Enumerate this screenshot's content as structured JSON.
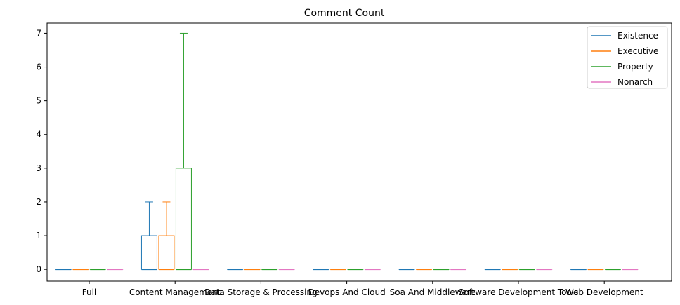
{
  "chart_data": {
    "type": "box",
    "title": "Comment Count",
    "xlabel": "",
    "ylabel": "",
    "ylim": [
      -0.35,
      7.3
    ],
    "yticks": [
      0,
      1,
      2,
      3,
      4,
      5,
      6,
      7
    ],
    "grid": false,
    "legend": "top-right",
    "categories": [
      "Full",
      "Content Management",
      "Data Storage & Processing",
      "Devops And Cloud",
      "Soa And Middleware",
      "Software Development Tools",
      "Web Development"
    ],
    "series": [
      {
        "name": "Existence",
        "color": "#1f77b4",
        "boxes": [
          {
            "whislo": 0,
            "q1": 0,
            "med": 0,
            "q3": 0,
            "whishi": 0
          },
          {
            "whislo": 0,
            "q1": 0,
            "med": 0,
            "q3": 1,
            "whishi": 2
          },
          {
            "whislo": 0,
            "q1": 0,
            "med": 0,
            "q3": 0,
            "whishi": 0
          },
          {
            "whislo": 0,
            "q1": 0,
            "med": 0,
            "q3": 0,
            "whishi": 0
          },
          {
            "whislo": 0,
            "q1": 0,
            "med": 0,
            "q3": 0,
            "whishi": 0
          },
          {
            "whislo": 0,
            "q1": 0,
            "med": 0,
            "q3": 0,
            "whishi": 0
          },
          {
            "whislo": 0,
            "q1": 0,
            "med": 0,
            "q3": 0,
            "whishi": 0
          }
        ]
      },
      {
        "name": "Executive",
        "color": "#ff7f0e",
        "boxes": [
          {
            "whislo": 0,
            "q1": 0,
            "med": 0,
            "q3": 0,
            "whishi": 0
          },
          {
            "whislo": 0,
            "q1": 0,
            "med": 0,
            "q3": 1,
            "whishi": 2
          },
          {
            "whislo": 0,
            "q1": 0,
            "med": 0,
            "q3": 0,
            "whishi": 0
          },
          {
            "whislo": 0,
            "q1": 0,
            "med": 0,
            "q3": 0,
            "whishi": 0
          },
          {
            "whislo": 0,
            "q1": 0,
            "med": 0,
            "q3": 0,
            "whishi": 0
          },
          {
            "whislo": 0,
            "q1": 0,
            "med": 0,
            "q3": 0,
            "whishi": 0
          },
          {
            "whislo": 0,
            "q1": 0,
            "med": 0,
            "q3": 0,
            "whishi": 0
          }
        ]
      },
      {
        "name": "Property",
        "color": "#2ca02c",
        "boxes": [
          {
            "whislo": 0,
            "q1": 0,
            "med": 0,
            "q3": 0,
            "whishi": 0
          },
          {
            "whislo": 0,
            "q1": 0,
            "med": 0,
            "q3": 3,
            "whishi": 7
          },
          {
            "whislo": 0,
            "q1": 0,
            "med": 0,
            "q3": 0,
            "whishi": 0
          },
          {
            "whislo": 0,
            "q1": 0,
            "med": 0,
            "q3": 0,
            "whishi": 0
          },
          {
            "whislo": 0,
            "q1": 0,
            "med": 0,
            "q3": 0,
            "whishi": 0
          },
          {
            "whislo": 0,
            "q1": 0,
            "med": 0,
            "q3": 0,
            "whishi": 0
          },
          {
            "whislo": 0,
            "q1": 0,
            "med": 0,
            "q3": 0,
            "whishi": 0
          }
        ]
      },
      {
        "name": "Nonarch",
        "color": "#e377c2",
        "boxes": [
          {
            "whislo": 0,
            "q1": 0,
            "med": 0,
            "q3": 0,
            "whishi": 0
          },
          {
            "whislo": 0,
            "q1": 0,
            "med": 0,
            "q3": 0,
            "whishi": 0
          },
          {
            "whislo": 0,
            "q1": 0,
            "med": 0,
            "q3": 0,
            "whishi": 0
          },
          {
            "whislo": 0,
            "q1": 0,
            "med": 0,
            "q3": 0,
            "whishi": 0
          },
          {
            "whislo": 0,
            "q1": 0,
            "med": 0,
            "q3": 0,
            "whishi": 0
          },
          {
            "whislo": 0,
            "q1": 0,
            "med": 0,
            "q3": 0,
            "whishi": 0
          },
          {
            "whislo": 0,
            "q1": 0,
            "med": 0,
            "q3": 0,
            "whishi": 0
          }
        ]
      }
    ]
  }
}
